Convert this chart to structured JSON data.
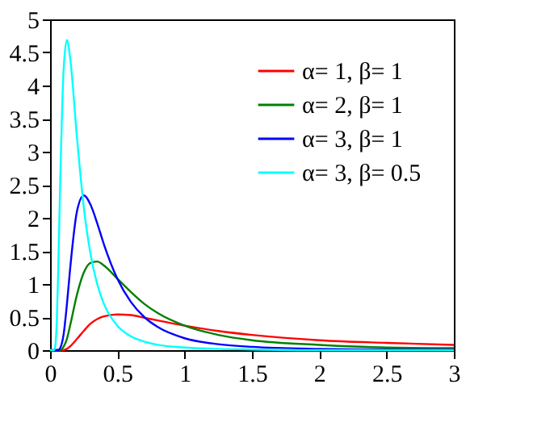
{
  "chart_data": {
    "type": "line",
    "x": [
      0,
      0.03,
      0.04,
      0.05,
      0.06,
      0.075,
      0.1,
      0.125,
      0.15,
      0.2,
      0.25,
      0.3,
      0.35,
      0.4,
      0.5,
      0.6,
      0.7,
      0.8,
      1,
      1.25,
      1.5,
      2,
      2.5,
      3
    ],
    "series": [
      {
        "name": "α= 1, β= 1",
        "color": "#ff0000",
        "values": [
          null,
          null,
          0,
          0,
          0,
          0,
          0,
          0.02,
          0.06,
          0.17,
          0.29,
          0.4,
          0.47,
          0.51,
          0.54,
          0.53,
          0.49,
          0.45,
          0.37,
          0.29,
          0.23,
          0.15,
          0.11,
          0.08
        ]
      },
      {
        "name": "α= 2, β= 1",
        "color": "#008000",
        "values": [
          0,
          0,
          0,
          0,
          0,
          0,
          0.05,
          0.17,
          0.38,
          0.84,
          1.17,
          1.32,
          1.34,
          1.28,
          1.08,
          0.88,
          0.7,
          0.56,
          0.37,
          0.23,
          0.15,
          0.08,
          0.04,
          0.03
        ]
      },
      {
        "name": "α= 3, β= 1",
        "color": "#0000ff",
        "values": [
          0,
          0,
          0,
          0,
          0,
          0.03,
          0.23,
          0.69,
          1.25,
          2.1,
          2.34,
          2.2,
          1.92,
          1.6,
          1.08,
          0.73,
          0.5,
          0.35,
          0.18,
          0.09,
          0.05,
          0.02,
          0.01,
          0.01
        ]
      },
      {
        "name": "α= 3, β= 0.5",
        "color": "#00ffff",
        "values": [
          0,
          0,
          0.09,
          0.45,
          1.16,
          2.51,
          4.21,
          4.69,
          4.4,
          3.21,
          2.17,
          1.46,
          1,
          0.7,
          0.37,
          0.21,
          0.13,
          0.08,
          0.04,
          0.02,
          0.01,
          0,
          0,
          0
        ]
      }
    ],
    "xlim": [
      0,
      3
    ],
    "xticks": [
      0,
      0.5,
      1,
      1.5,
      2,
      2.5,
      3
    ],
    "ylim": [
      0,
      5
    ],
    "yticks": [
      0,
      0.5,
      1,
      1.5,
      2,
      2.5,
      3,
      3.5,
      4,
      4.5,
      5
    ],
    "grid": false,
    "legend": "top right",
    "marker": "none",
    "line_style": "solid"
  }
}
